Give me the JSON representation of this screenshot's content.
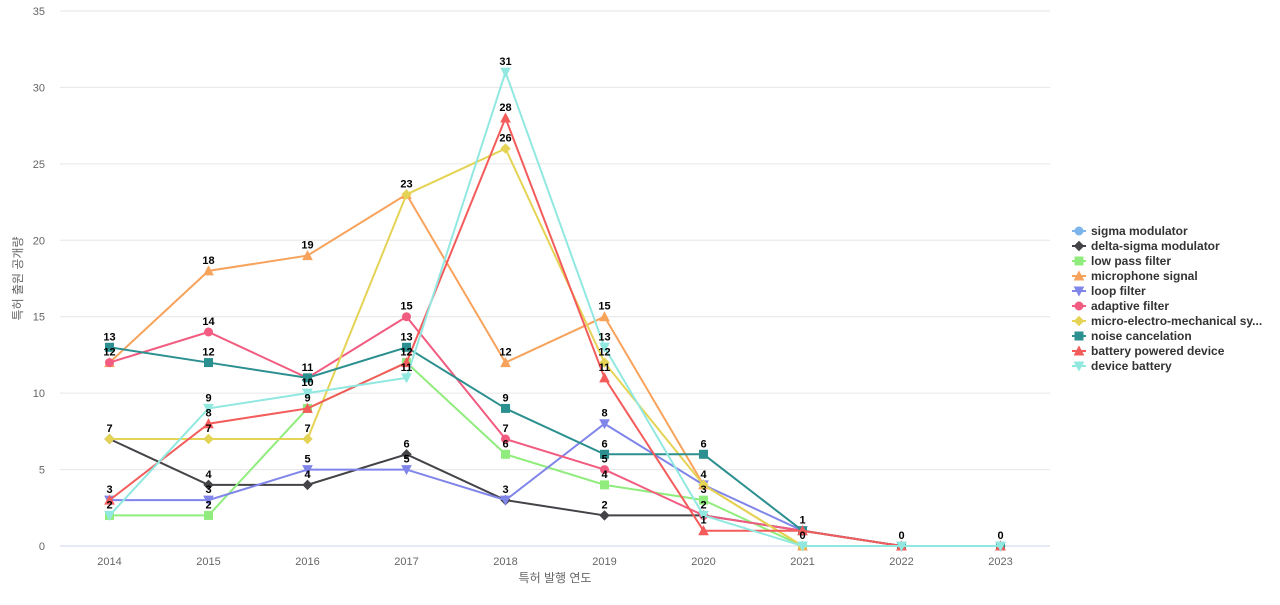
{
  "chart_data": {
    "type": "line",
    "xlabel": "특허 발행 연도",
    "ylabel": "특허 출원 공개량",
    "categories": [
      "2014",
      "2015",
      "2016",
      "2017",
      "2018",
      "2019",
      "2020",
      "2021",
      "2022",
      "2023"
    ],
    "ylim": [
      0,
      35
    ],
    "yticks": [
      0,
      5,
      10,
      15,
      20,
      25,
      30,
      35
    ],
    "grid": true,
    "legend_position": "right",
    "series": [
      {
        "name": "sigma modulator",
        "color": "#7cb5ec",
        "marker": "circle",
        "values": [
          null,
          null,
          null,
          null,
          null,
          null,
          null,
          null,
          0,
          0
        ]
      },
      {
        "name": "delta-sigma modulator",
        "color": "#434348",
        "marker": "diamond",
        "values": [
          7,
          4,
          4,
          6,
          3,
          2,
          2,
          1,
          0,
          0
        ]
      },
      {
        "name": "low pass filter",
        "color": "#90ed7d",
        "marker": "square",
        "values": [
          2,
          2,
          9,
          12,
          6,
          4,
          3,
          0,
          0,
          0
        ]
      },
      {
        "name": "microphone signal",
        "color": "#f7a35c",
        "marker": "triangle",
        "values": [
          12,
          18,
          19,
          23,
          12,
          15,
          4,
          0,
          0,
          0
        ]
      },
      {
        "name": "loop filter",
        "color": "#8085e9",
        "marker": "triangle-down",
        "values": [
          3,
          3,
          5,
          5,
          3,
          8,
          4,
          1,
          0,
          0
        ]
      },
      {
        "name": "adaptive filter",
        "color": "#f15c80",
        "marker": "circle",
        "values": [
          12,
          14,
          11,
          15,
          7,
          5,
          2,
          1,
          0,
          0
        ]
      },
      {
        "name": "micro-electro-mechanical sy...",
        "color": "#e4d354",
        "marker": "diamond",
        "values": [
          7,
          7,
          7,
          23,
          26,
          12,
          4,
          0,
          0,
          0
        ]
      },
      {
        "name": "noise cancelation",
        "color": "#2b908f",
        "marker": "square",
        "values": [
          13,
          12,
          11,
          13,
          9,
          6,
          6,
          1,
          0,
          0
        ]
      },
      {
        "name": "battery powered device",
        "color": "#f45b5b",
        "marker": "triangle",
        "values": [
          3,
          8,
          9,
          12,
          28,
          11,
          1,
          1,
          0,
          0
        ]
      },
      {
        "name": "device battery",
        "color": "#91e8e1",
        "marker": "triangle-down",
        "values": [
          2,
          9,
          10,
          11,
          31,
          13,
          2,
          0,
          0,
          0
        ]
      }
    ]
  }
}
